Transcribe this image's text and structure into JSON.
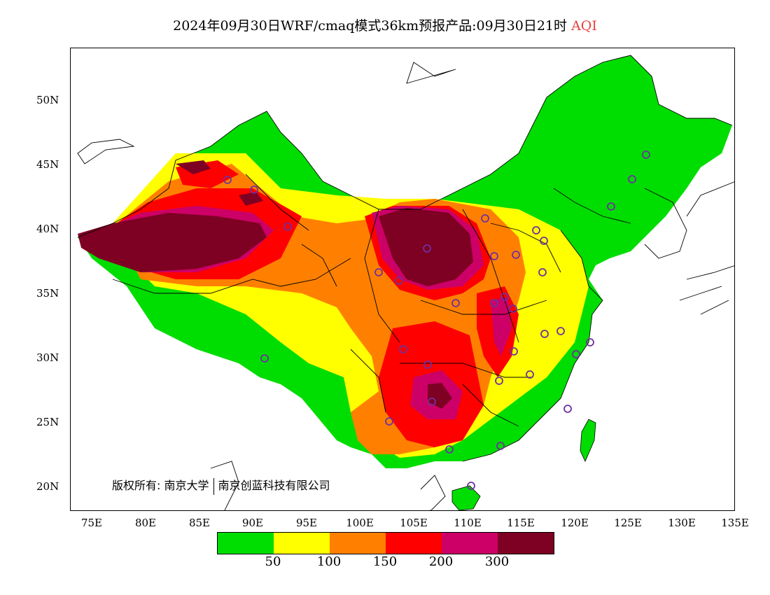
{
  "title": {
    "main": "2024年09月30日WRF/cmaq模式36km预报产品:09月30日21时",
    "pollutant": "AQI"
  },
  "axes": {
    "lat_labels": [
      "50N",
      "45N",
      "40N",
      "35N",
      "30N",
      "25N",
      "20N"
    ],
    "lon_labels": [
      "75E",
      "80E",
      "85E",
      "90E",
      "95E",
      "100E",
      "105E",
      "110E",
      "115E",
      "120E",
      "125E",
      "130E",
      "135E"
    ]
  },
  "copyright": {
    "prefix": "版权所有:",
    "org1": "南京大学",
    "org2": "南京创蓝科技有限公司"
  },
  "legend": {
    "colors": [
      "#00dd00",
      "#ffff00",
      "#ff8000",
      "#ff0000",
      "#cc0066",
      "#7e0023"
    ],
    "ticks": [
      "50",
      "100",
      "150",
      "200",
      "300"
    ]
  },
  "map_colors": {
    "ocean": "#ffffff",
    "coast": "#000000",
    "stations": "#7030a0"
  }
}
